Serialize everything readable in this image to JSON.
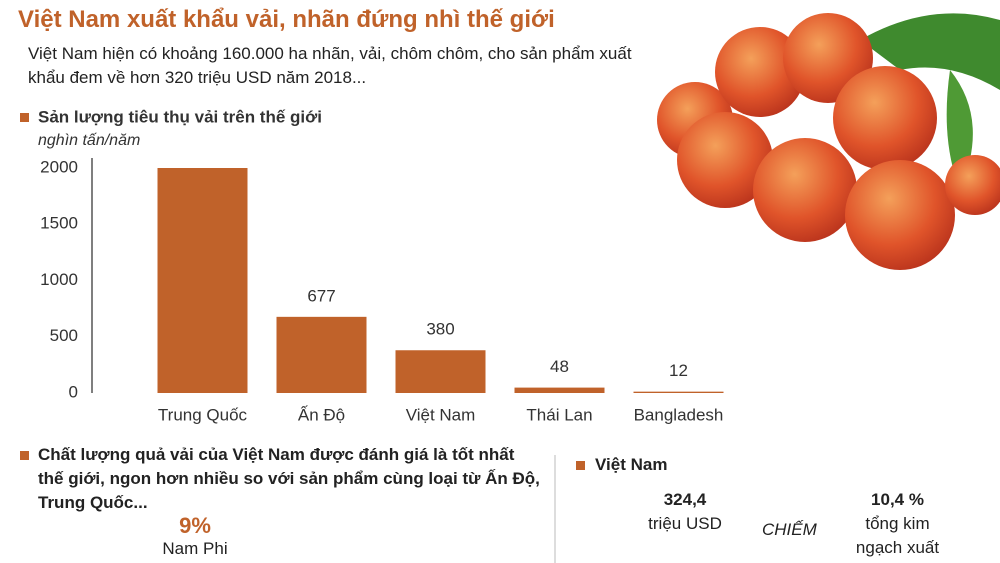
{
  "header": {
    "title": "Việt Nam xuất khẩu vải, nhãn đứng nhì thế giới",
    "subtitle": "Việt Nam hiện có khoảng 160.000 ha nhãn, vải, chôm chôm, cho sản phẩm xuất khẩu đem về hơn 320 triệu USD năm 2018..."
  },
  "chart_data": {
    "type": "bar",
    "title": "Sản lượng tiêu thụ vải trên thế giới",
    "y_label": "nghìn tấn/năm",
    "categories": [
      "Trung Quốc",
      "Ấn Độ",
      "Việt Nam",
      "Thái Lan",
      "Bangladesh"
    ],
    "values": [
      2000,
      677,
      380,
      48,
      12
    ],
    "value_labels": [
      null,
      "677",
      "380",
      "48",
      "12"
    ],
    "color": "#c0622a",
    "ylim": [
      0,
      2100
    ],
    "yticks": [
      0,
      500,
      1000,
      1500,
      2000
    ],
    "grid": false
  },
  "quality": {
    "text": "Chất lượng quả vải của Việt Nam được đánh giá là tốt nhất thế giới, ngon hơn nhiều so với sản phẩm cùng loại từ Ấn Độ, Trung Quốc...",
    "share": "9%",
    "share_label": "Nam Phi"
  },
  "vietnam": {
    "title": "Việt Nam",
    "value": "324,4",
    "value_unit": "triệu USD",
    "connector": "CHIẾM",
    "share": "10,4 %",
    "share_label_1": "tổng kim",
    "share_label_2": "ngạch xuất"
  }
}
